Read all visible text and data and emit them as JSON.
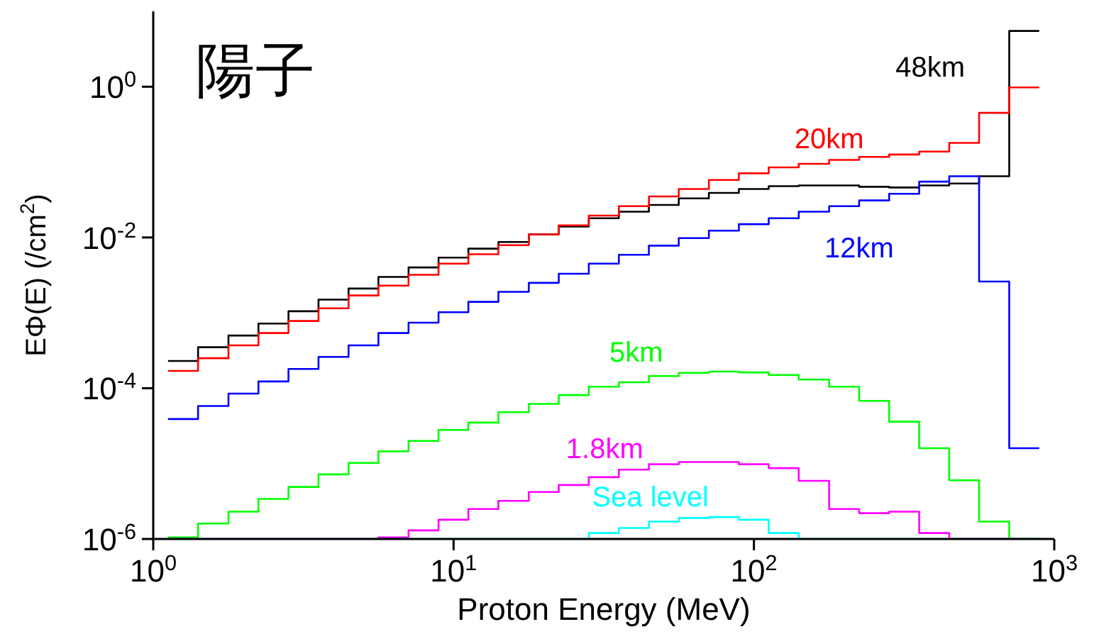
{
  "chart_data": {
    "type": "histogram",
    "title": "陽子",
    "xlabel": "Proton Energy (MeV)",
    "ylabel": "EΦ(E)  (/cm$^{2}$)",
    "log": "xy",
    "grid": false,
    "legend": false,
    "xlim": [
      1,
      1000
    ],
    "xticks": [
      {
        "value": 1,
        "label": "10$^{0}$"
      },
      {
        "value": 10,
        "label": "10$^{1}$"
      },
      {
        "value": 100,
        "label": "10$^{2}$"
      },
      {
        "value": 1000,
        "label": "10$^{3}$"
      }
    ],
    "ylim": [
      1e-06,
      10
    ],
    "yticks": [
      {
        "value": 1e-06,
        "label": "10$^{-6}$"
      },
      {
        "value": 0.0001,
        "label": "10$^{-4}$"
      },
      {
        "value": 0.01,
        "label": "10$^{-2}$"
      },
      {
        "value": 1,
        "label": "10$^{0}$"
      }
    ],
    "bins": [
      1.12,
      1.41,
      1.78,
      2.24,
      2.82,
      3.55,
      4.47,
      5.62,
      7.08,
      8.91,
      11.2,
      14.1,
      17.8,
      22.4,
      28.2,
      35.5,
      44.7,
      56.2,
      70.8,
      89.1,
      112,
      141,
      178,
      224,
      282,
      355,
      447,
      562,
      708,
      891
    ],
    "series": [
      {
        "name": "48km",
        "color": "#000000",
        "values": [
          0.00023,
          0.00035,
          0.0005,
          0.00072,
          0.00105,
          0.0015,
          0.0021,
          0.003,
          0.004,
          0.0054,
          0.0071,
          0.0087,
          0.011,
          0.014,
          0.018,
          0.022,
          0.027,
          0.033,
          0.039,
          0.044,
          0.048,
          0.049,
          0.049,
          0.047,
          0.046,
          0.049,
          0.052,
          0.065,
          5.5
        ]
      },
      {
        "name": "20km",
        "color": "#ff0000",
        "values": [
          0.00017,
          0.00025,
          0.00037,
          0.00054,
          0.00078,
          0.00115,
          0.0017,
          0.0023,
          0.0032,
          0.0045,
          0.006,
          0.0079,
          0.011,
          0.0145,
          0.0195,
          0.026,
          0.035,
          0.044,
          0.058,
          0.071,
          0.085,
          0.095,
          0.107,
          0.117,
          0.126,
          0.138,
          0.18,
          0.45,
          0.98
        ]
      },
      {
        "name": "12km",
        "color": "#0000ff",
        "values": [
          3.9e-05,
          5.8e-05,
          8.5e-05,
          0.000123,
          0.00018,
          0.00026,
          0.00037,
          0.00054,
          0.00074,
          0.00102,
          0.0014,
          0.0019,
          0.0025,
          0.0033,
          0.0045,
          0.0059,
          0.0078,
          0.0098,
          0.0123,
          0.015,
          0.018,
          0.022,
          0.026,
          0.031,
          0.038,
          0.055,
          0.065,
          0.0026,
          1.6e-05
        ]
      },
      {
        "name": "5km",
        "color": "#00ff00",
        "values": [
          1.05e-06,
          1.6e-06,
          2.3e-06,
          3.4e-06,
          4.9e-06,
          7.2e-06,
          1.02e-05,
          1.45e-05,
          2e-05,
          2.8e-05,
          3.5e-05,
          4.8e-05,
          6.2e-05,
          8.1e-05,
          0.000105,
          0.00012,
          0.000145,
          0.00016,
          0.000166,
          0.000162,
          0.00015,
          0.00013,
          0.000105,
          6.8e-05,
          3.6e-05,
          1.6e-05,
          6e-06,
          1.7e-06,
          null
        ]
      },
      {
        "name": "1.8km",
        "color": "#ff00ff",
        "values": [
          null,
          null,
          null,
          null,
          null,
          null,
          null,
          1.05e-06,
          1.3e-06,
          1.8e-06,
          2.5e-06,
          3.2e-06,
          4.2e-06,
          5.2e-06,
          6.6e-06,
          8.3e-06,
          9.8e-06,
          1.05e-05,
          1.05e-05,
          9.8e-06,
          8.7e-06,
          5.9e-06,
          2.5e-06,
          2.2e-06,
          2.3e-06,
          1.2e-06,
          null,
          null,
          null
        ]
      },
      {
        "name": "Sea level",
        "color": "#00ffff",
        "values": [
          null,
          null,
          null,
          null,
          null,
          null,
          null,
          null,
          null,
          null,
          null,
          null,
          null,
          null,
          1.2e-06,
          1.4e-06,
          1.7e-06,
          1.9e-06,
          1.95e-06,
          1.8e-06,
          1.2e-06,
          null,
          null,
          null,
          null,
          null,
          null,
          null,
          null
        ]
      }
    ]
  }
}
